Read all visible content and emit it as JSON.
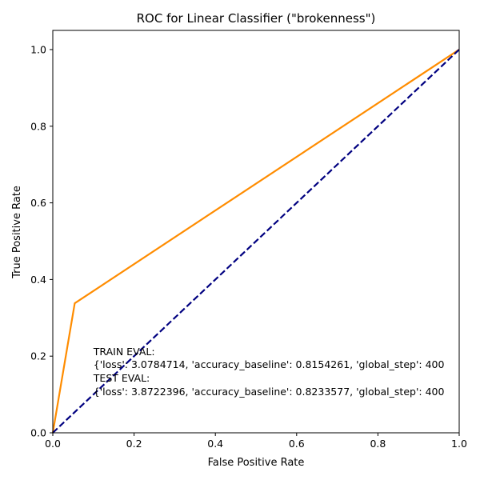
{
  "chart_data": {
    "type": "line",
    "title": "ROC for Linear Classifier (\"brokenness\")",
    "xlabel": "False Positive Rate",
    "ylabel": "True Positive Rate",
    "xlim": [
      0.0,
      1.0
    ],
    "ylim": [
      0.0,
      1.05
    ],
    "xticks": [
      0.0,
      0.2,
      0.4,
      0.6,
      0.8,
      1.0
    ],
    "yticks": [
      0.0,
      0.2,
      0.4,
      0.6,
      0.8,
      1.0
    ],
    "xtick_labels": [
      "0.0",
      "0.2",
      "0.4",
      "0.6",
      "0.8",
      "1.0"
    ],
    "ytick_labels": [
      "0.0",
      "0.2",
      "0.4",
      "0.6",
      "0.8",
      "1.0"
    ],
    "grid": false,
    "series": [
      {
        "color": "#ff8c00",
        "style": "solid",
        "x": [
          0.0,
          0.054,
          1.0
        ],
        "y": [
          0.0,
          0.338,
          1.0
        ]
      },
      {
        "color": "#000080",
        "style": "dashed",
        "x": [
          0.0,
          1.0
        ],
        "y": [
          0.0,
          1.0
        ]
      }
    ],
    "annotations": [
      "TRAIN EVAL:",
      "{'loss': 3.0784714, 'accuracy_baseline': 0.8154261, 'global_step': 400",
      "TEST EVAL:",
      "{'loss': 3.8722396, 'accuracy_baseline': 0.8233577, 'global_step': 400"
    ]
  }
}
